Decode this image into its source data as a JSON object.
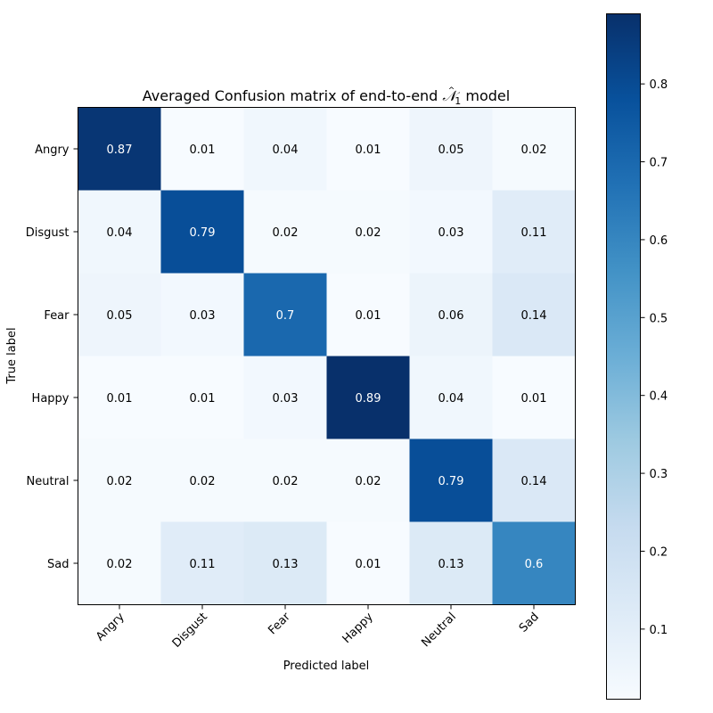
{
  "chart_data": {
    "type": "heatmap",
    "title_prefix": "Averaged Confusion matrix of end-to-end ",
    "title_symbol": "𝒩",
    "title_hat": "^",
    "title_subscript": "1",
    "title_suffix": " model",
    "xlabel": "Predicted label",
    "ylabel": "True label",
    "x_categories": [
      "Angry",
      "Disgust",
      "Fear",
      "Happy",
      "Neutral",
      "Sad"
    ],
    "y_categories": [
      "Angry",
      "Disgust",
      "Fear",
      "Happy",
      "Neutral",
      "Sad"
    ],
    "values": [
      [
        0.87,
        0.01,
        0.04,
        0.01,
        0.05,
        0.02
      ],
      [
        0.04,
        0.79,
        0.02,
        0.02,
        0.03,
        0.11
      ],
      [
        0.05,
        0.03,
        0.7,
        0.01,
        0.06,
        0.14
      ],
      [
        0.01,
        0.01,
        0.03,
        0.89,
        0.04,
        0.01
      ],
      [
        0.02,
        0.02,
        0.02,
        0.02,
        0.79,
        0.14
      ],
      [
        0.02,
        0.11,
        0.13,
        0.01,
        0.13,
        0.6
      ]
    ],
    "colorbar": {
      "min": 0.01,
      "max": 0.89,
      "ticks": [
        0.1,
        0.2,
        0.3,
        0.4,
        0.5,
        0.6,
        0.7,
        0.8
      ],
      "tick_labels": [
        "0.1",
        "0.2",
        "0.3",
        "0.4",
        "0.5",
        "0.6",
        "0.7",
        "0.8"
      ]
    },
    "colormap": "Blues",
    "colors": {
      "cmap_stops": [
        "#f7fbff",
        "#deebf7",
        "#c6dbef",
        "#9ecae1",
        "#6baed6",
        "#4292c6",
        "#2171b5",
        "#08519c",
        "#08306b"
      ],
      "text_dark": "#000000",
      "text_light": "#ffffff"
    }
  }
}
